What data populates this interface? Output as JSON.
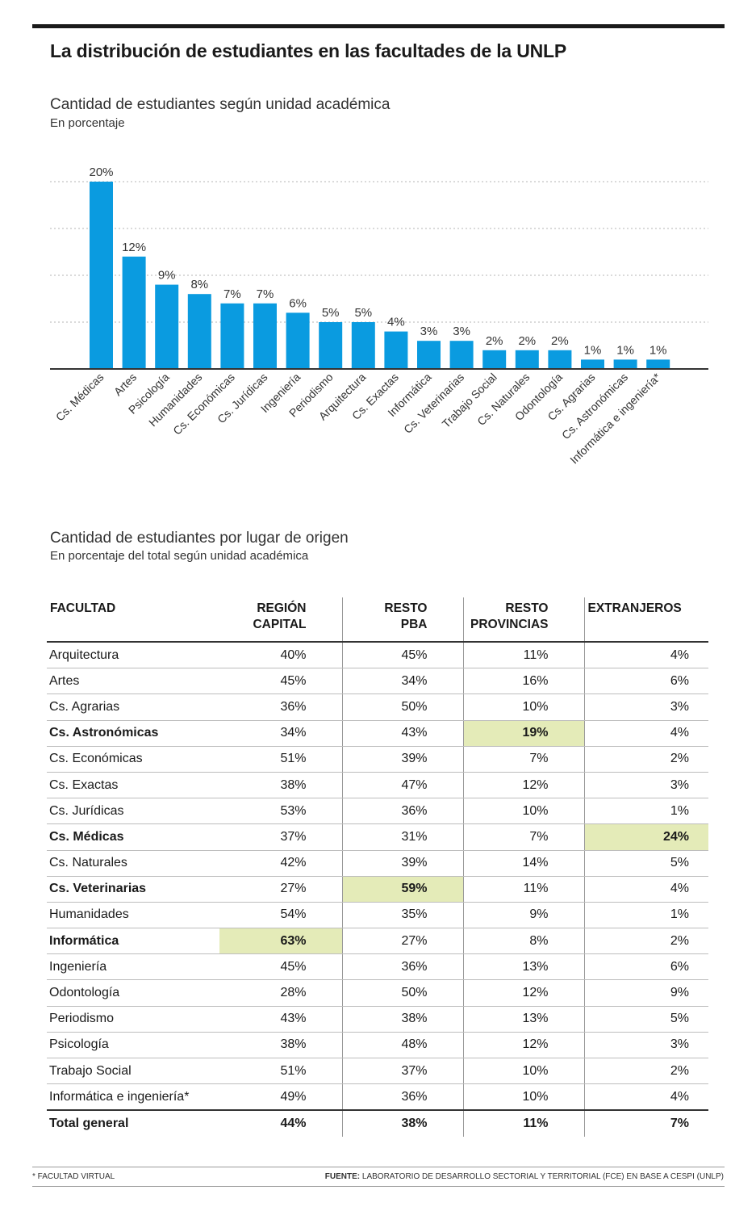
{
  "header": {
    "title": "La distribución de estudiantes en las facultades de la UNLP"
  },
  "chart_section": {
    "subtitle": "Cantidad de estudiantes según unidad académica",
    "unit_note": "En porcentaje"
  },
  "chart_data": {
    "type": "bar",
    "categories": [
      "Cs. Médicas",
      "Artes",
      "Psicología",
      "Humanidades",
      "Cs. Económicas",
      "Cs. Jurídicas",
      "Ingeniería",
      "Periodismo",
      "Arquitectura",
      "Cs. Exactas",
      "Informática",
      "Cs. Veterinarias",
      "Trabajo Social",
      "Cs. Naturales",
      "Odontología",
      "Cs. Agrarias",
      "Cs. Astronómicas",
      "Informática e ingeniería*"
    ],
    "values": [
      20,
      12,
      9,
      8,
      7,
      7,
      6,
      5,
      5,
      4,
      3,
      3,
      2,
      2,
      2,
      1,
      1,
      1
    ],
    "value_labels": [
      "20%",
      "12%",
      "9%",
      "8%",
      "7%",
      "7%",
      "6%",
      "5%",
      "5%",
      "4%",
      "3%",
      "3%",
      "2%",
      "2%",
      "2%",
      "1%",
      "1%",
      "1%"
    ],
    "title": "Cantidad de estudiantes según unidad académica",
    "subtitle": "En porcentaje",
    "xlabel": "",
    "ylabel": "",
    "ylim": [
      0,
      20
    ],
    "gridlines": [
      5,
      10,
      15,
      20
    ],
    "grid": true,
    "bar_color": "#0a9be0"
  },
  "table_section": {
    "subtitle": "Cantidad de estudiantes por lugar de origen",
    "unit_note": "En porcentaje del total según unidad académica",
    "headers": [
      {
        "l1": "FACULTAD",
        "l2": ""
      },
      {
        "l1": "REGIÓN",
        "l2": "CAPITAL"
      },
      {
        "l1": "RESTO",
        "l2": "PBA"
      },
      {
        "l1": "RESTO",
        "l2": "PROVINCIAS"
      },
      {
        "l1": "EXTRANJEROS",
        "l2": ""
      }
    ],
    "highlight_color": "#e4ebb8",
    "rows": [
      {
        "name": "Arquitectura",
        "vals": [
          "40%",
          "45%",
          "11%",
          "4%"
        ],
        "bold": false,
        "hl": -1
      },
      {
        "name": "Artes",
        "vals": [
          "45%",
          "34%",
          "16%",
          "6%"
        ],
        "bold": false,
        "hl": -1
      },
      {
        "name": "Cs. Agrarias",
        "vals": [
          "36%",
          "50%",
          "10%",
          "3%"
        ],
        "bold": false,
        "hl": -1
      },
      {
        "name": "Cs. Astronómicas",
        "vals": [
          "34%",
          "43%",
          "19%",
          "4%"
        ],
        "bold": true,
        "hl": 2
      },
      {
        "name": "Cs. Económicas",
        "vals": [
          "51%",
          "39%",
          "7%",
          "2%"
        ],
        "bold": false,
        "hl": -1
      },
      {
        "name": "Cs. Exactas",
        "vals": [
          "38%",
          "47%",
          "12%",
          "3%"
        ],
        "bold": false,
        "hl": -1
      },
      {
        "name": "Cs. Jurídicas",
        "vals": [
          "53%",
          "36%",
          "10%",
          "1%"
        ],
        "bold": false,
        "hl": -1
      },
      {
        "name": "Cs. Médicas",
        "vals": [
          "37%",
          "31%",
          "7%",
          "24%"
        ],
        "bold": true,
        "hl": 3
      },
      {
        "name": "Cs. Naturales",
        "vals": [
          "42%",
          "39%",
          "14%",
          "5%"
        ],
        "bold": false,
        "hl": -1
      },
      {
        "name": "Cs. Veterinarias",
        "vals": [
          "27%",
          "59%",
          "11%",
          "4%"
        ],
        "bold": true,
        "hl": 1
      },
      {
        "name": "Humanidades",
        "vals": [
          "54%",
          "35%",
          "9%",
          "1%"
        ],
        "bold": false,
        "hl": -1
      },
      {
        "name": "Informática",
        "vals": [
          "63%",
          "27%",
          "8%",
          "2%"
        ],
        "bold": true,
        "hl": 0
      },
      {
        "name": "Ingeniería",
        "vals": [
          "45%",
          "36%",
          "13%",
          "6%"
        ],
        "bold": false,
        "hl": -1
      },
      {
        "name": "Odontología",
        "vals": [
          "28%",
          "50%",
          "12%",
          "9%"
        ],
        "bold": false,
        "hl": -1
      },
      {
        "name": "Periodismo",
        "vals": [
          "43%",
          "38%",
          "13%",
          "5%"
        ],
        "bold": false,
        "hl": -1
      },
      {
        "name": "Psicología",
        "vals": [
          "38%",
          "48%",
          "12%",
          "3%"
        ],
        "bold": false,
        "hl": -1
      },
      {
        "name": "Trabajo Social",
        "vals": [
          "51%",
          "37%",
          "10%",
          "2%"
        ],
        "bold": false,
        "hl": -1
      },
      {
        "name": "Informática e ingeniería*",
        "vals": [
          "49%",
          "36%",
          "10%",
          "4%"
        ],
        "bold": false,
        "hl": -1
      }
    ],
    "total": {
      "name": "Total general",
      "vals": [
        "44%",
        "38%",
        "11%",
        "7%"
      ]
    }
  },
  "footer": {
    "note": "* FACULTAD VIRTUAL",
    "source_label": "FUENTE:",
    "source_text": " LABORATORIO DE DESARROLLO SECTORIAL Y TERRITORIAL (FCE) EN BASE A CESPI (UNLP)"
  }
}
